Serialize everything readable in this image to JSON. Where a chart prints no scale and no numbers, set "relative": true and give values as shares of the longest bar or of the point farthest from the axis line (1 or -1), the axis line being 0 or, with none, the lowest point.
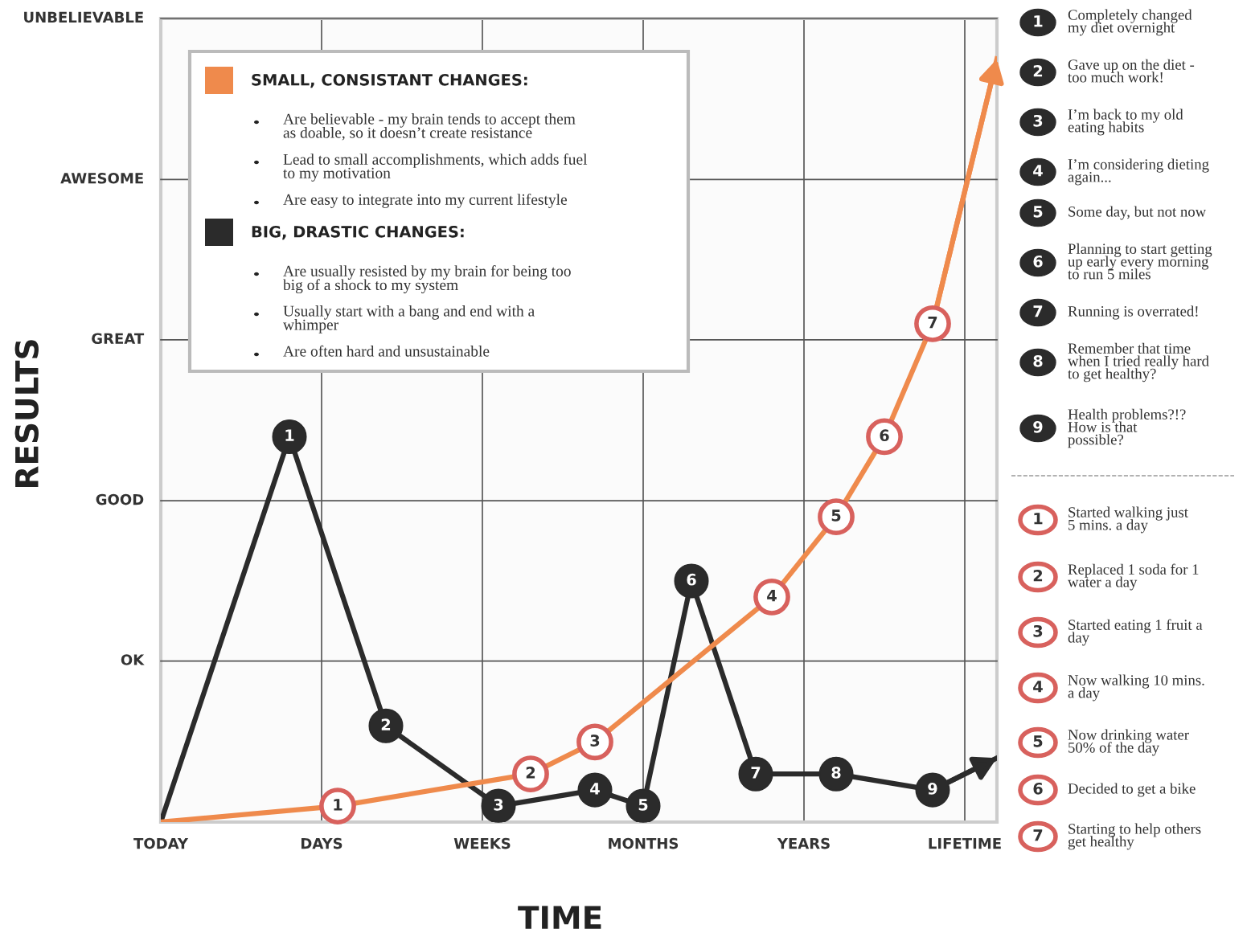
{
  "chart_data": {
    "type": "line",
    "xlabel": "TIME",
    "ylabel": "RESULTS",
    "relative": true,
    "categories": [
      "TODAY",
      null,
      null,
      null,
      null,
      null,
      null,
      null,
      null,
      null,
      "DAYS",
      null,
      null,
      null,
      null,
      null,
      null,
      null,
      null,
      null,
      "WEEKS",
      null,
      null,
      null,
      null,
      null,
      null,
      null,
      null,
      null,
      "MONTHS",
      null,
      null,
      null,
      null,
      null,
      null,
      null,
      null,
      null,
      "YEARS",
      null,
      null,
      null,
      null,
      null,
      null,
      null,
      null,
      null,
      "LIFETIME",
      null,
      null
    ],
    "grid": "x",
    "legend": "top left",
    "line_style": "solid",
    "ref_lines": [
      {
        "axis": "y",
        "value": 0.211,
        "label": "OK",
        "color": "#555555"
      },
      {
        "axis": "y",
        "value": 0.421,
        "label": "GOOD",
        "color": "#555555"
      },
      {
        "axis": "y",
        "value": 0.632,
        "label": "GREAT",
        "color": "#555555"
      },
      {
        "axis": "y",
        "value": 0.842,
        "label": "AWESOME",
        "color": "#555555"
      },
      {
        "axis": "y",
        "value": 1.053,
        "label": "UNBELIEVABLE",
        "color": "#555555"
      }
    ],
    "series": [
      {
        "name": "SMALL, CONSISTANT CHANGES:",
        "color": "#ef8a4c",
        "values": [
          0,
          null,
          null,
          null,
          null,
          null,
          null,
          null,
          null,
          null,
          null,
          0.021,
          null,
          null,
          null,
          null,
          null,
          null,
          null,
          null,
          null,
          null,
          null,
          0.063,
          null,
          null,
          null,
          0.105,
          null,
          null,
          null,
          null,
          null,
          null,
          null,
          null,
          null,
          null,
          0.295,
          null,
          null,
          null,
          0.4,
          null,
          null,
          0.505,
          null,
          null,
          0.653,
          null,
          null,
          null,
          1
        ]
      },
      {
        "name": "BIG, DRASTIC CHANGES:",
        "color": "#2b2b2b",
        "marker": "circle",
        "values": [
          0,
          null,
          null,
          null,
          null,
          null,
          null,
          null,
          0.505,
          null,
          null,
          null,
          null,
          null,
          0.126,
          null,
          null,
          null,
          null,
          null,
          null,
          0.021,
          null,
          null,
          null,
          null,
          null,
          0.042,
          null,
          null,
          0.021,
          null,
          null,
          0.316,
          null,
          null,
          null,
          0.063,
          null,
          null,
          null,
          null,
          0.063,
          null,
          null,
          null,
          null,
          null,
          0.042,
          null,
          null,
          null,
          0.084
        ]
      }
    ],
    "annotations": [
      "Are believable - my brain tends to accept them\nas doable, so it doesn’t create resistance",
      "Lead to small accomplishments, which adds fuel\nto my motivation",
      "Are easy to integrate into my current lifestyle",
      "Are usually resisted by my brain for being too\nbig of a shock to my system",
      "Usually start with a bang and end with a\nwhimper",
      "Are often hard and unsustainable",
      "Completely changed\nmy diet overnight",
      "Gave up on the diet -\ntoo much work!",
      "I’m back to my old\neating habits",
      "I’m considering dieting\nagain...",
      "Some day, but not now",
      "Planning to start getting\nup early every morning\nto run 5 miles",
      "Running is overrated!",
      "Remember that time\nwhen I tried really hard\nto get healthy?",
      "Health problems?!?\nHow is that\npossible?",
      "Started walking just\n5 mins. a day",
      "Replaced 1 soda for 1\nwater a day",
      "Started eating 1 fruit a\nday",
      "Now walking 10 mins.\na day",
      "Now drinking water\n50% of the day",
      "Decided to get a bike",
      "Starting to help others\nget healthy",
      {
        "text": "1",
        "y": 0.021
      },
      {
        "text": "2",
        "y": 0.063
      },
      {
        "text": "3",
        "y": 0.105
      },
      {
        "text": "4",
        "y": 0.295
      },
      {
        "text": "5",
        "y": 0.4
      },
      {
        "text": "6",
        "y": 0.505
      },
      {
        "text": "7",
        "y": 0.653
      },
      {
        "text": "1",
        "y": 0.505
      },
      {
        "text": "2",
        "y": 0.126
      },
      {
        "text": "3",
        "y": 0.021
      },
      {
        "text": "4",
        "y": 0.042
      },
      {
        "text": "5",
        "y": 0.021
      },
      {
        "text": "6",
        "y": 0.316
      },
      {
        "text": "7",
        "y": 0.063
      },
      {
        "text": "8",
        "y": 0.063
      },
      {
        "text": "9",
        "y": 0.042
      }
    ]
  }
}
